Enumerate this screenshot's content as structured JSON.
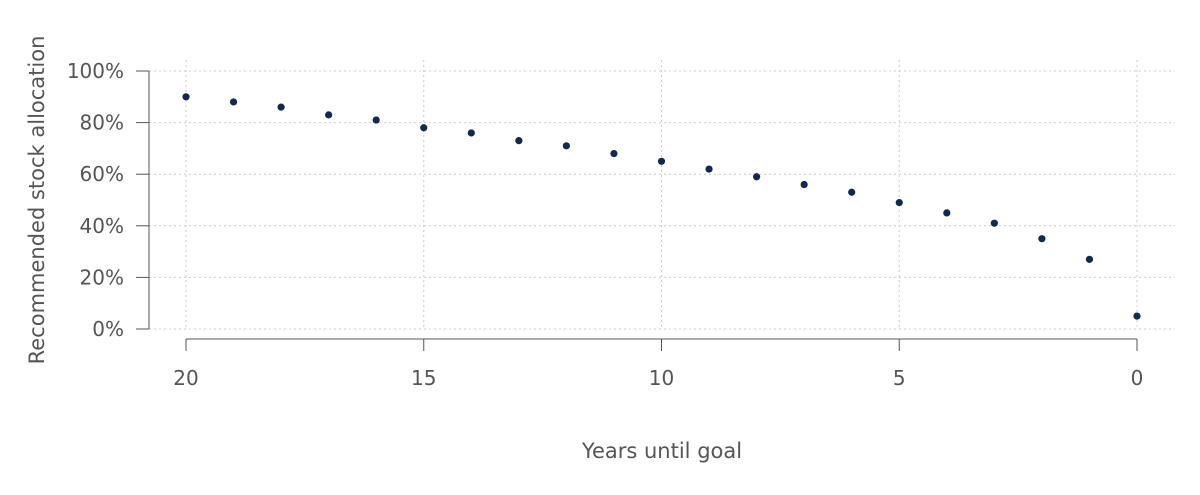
{
  "chart_data": {
    "type": "scatter",
    "xlabel": "Years until goal",
    "ylabel": "Recommended stock allocation",
    "xlim": [
      20,
      0
    ],
    "ylim": [
      0,
      100
    ],
    "x_reversed": true,
    "xticks": [
      20,
      15,
      10,
      5,
      0
    ],
    "xtick_labels": [
      "20",
      "15",
      "10",
      "5",
      "0"
    ],
    "yticks": [
      0,
      20,
      40,
      60,
      80,
      100
    ],
    "ytick_labels": [
      "0%",
      "20%",
      "40%",
      "60%",
      "80%",
      "100%"
    ],
    "grid": true,
    "point_color": "#13294b",
    "x": [
      20,
      19,
      18,
      17,
      16,
      15,
      14,
      13,
      12,
      11,
      10,
      9,
      8,
      7,
      6,
      5,
      4,
      3,
      2,
      1,
      0
    ],
    "y": [
      90,
      88,
      86,
      83,
      81,
      78,
      76,
      73,
      71,
      68,
      65,
      62,
      59,
      56,
      53,
      49,
      45,
      41,
      35,
      27,
      5
    ]
  }
}
